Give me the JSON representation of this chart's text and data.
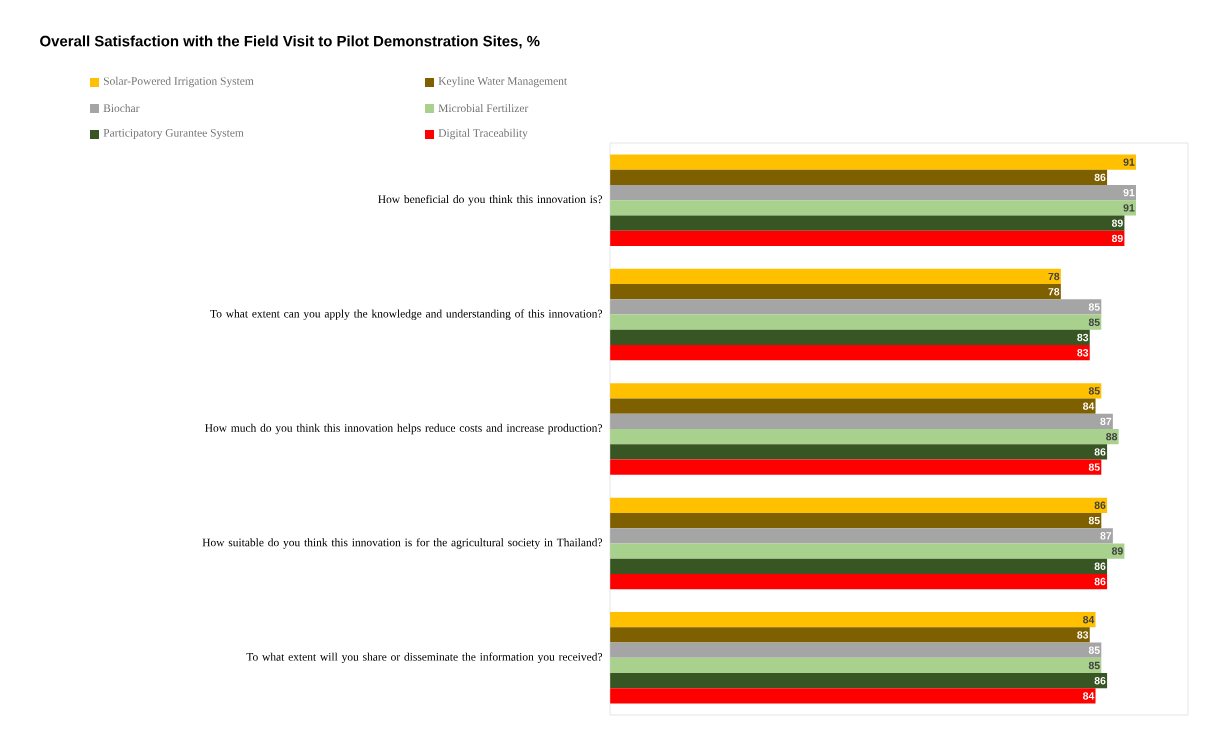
{
  "chart_data": {
    "type": "bar",
    "orientation": "horizontal",
    "title": "Overall Satisfaction with the Field Visit to Pilot Demonstration Sites, %",
    "categories": [
      "How beneficial do you think this innovation is?",
      "To what extent can you apply the knowledge and understanding of this innovation?",
      "How much do you think this innovation helps reduce costs and increase production?",
      "How suitable do you think this innovation is for the agricultural society in Thailand?",
      "To what extent will you share or disseminate the information you received?"
    ],
    "series": [
      {
        "name": "Solar-Powered Irrigation System",
        "color": "#ffc000",
        "values": [
          91,
          78,
          85,
          86,
          84
        ]
      },
      {
        "name": "Keyline Water Management",
        "color": "#7f6000",
        "values": [
          86,
          78,
          84,
          85,
          83
        ]
      },
      {
        "name": "Biochar",
        "color": "#a5a5a5",
        "values": [
          91,
          85,
          87,
          87,
          85
        ]
      },
      {
        "name": "Microbial Fertilizer",
        "color": "#a9d18e",
        "values": [
          91,
          85,
          88,
          89,
          85
        ]
      },
      {
        "name": "Participatory Gurantee System",
        "color": "#375623",
        "values": [
          89,
          83,
          86,
          86,
          86
        ]
      },
      {
        "name": "Digital Traceability",
        "color": "#ff0000",
        "values": [
          89,
          83,
          85,
          86,
          84
        ]
      }
    ],
    "xlim": [
      0,
      100
    ],
    "data_labels": true,
    "legend": "top left",
    "tick_labels": "y"
  }
}
